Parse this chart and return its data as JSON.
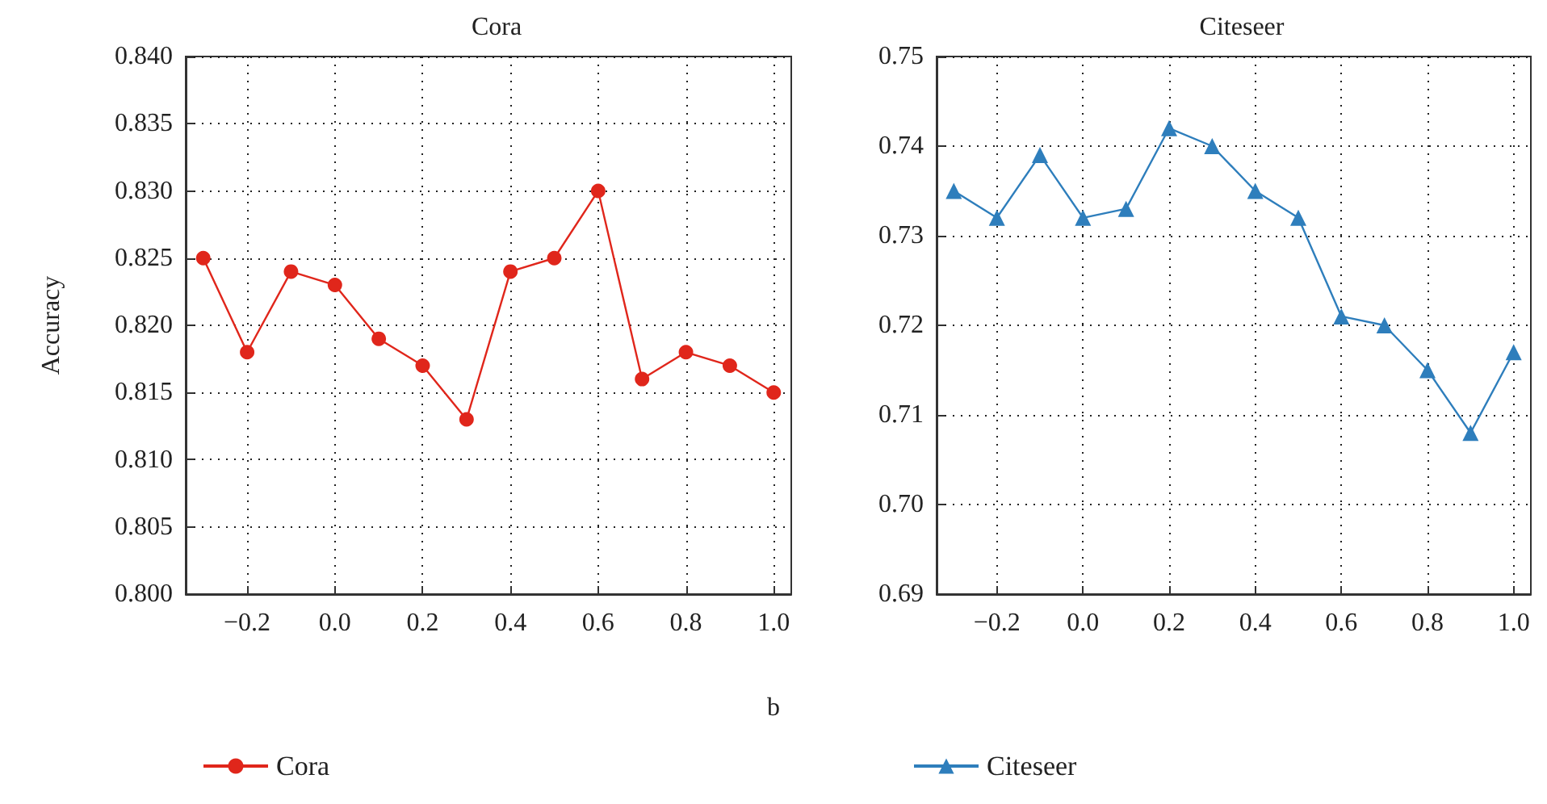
{
  "chart_data": [
    {
      "type": "line",
      "title": "Cora",
      "ylabel": "Accuracy",
      "x": [
        -0.3,
        -0.2,
        -0.1,
        0.0,
        0.1,
        0.2,
        0.3,
        0.4,
        0.5,
        0.6,
        0.7,
        0.8,
        0.9,
        1.0
      ],
      "series": [
        {
          "name": "Cora",
          "color": "#e0261b",
          "values": [
            0.825,
            0.818,
            0.824,
            0.823,
            0.819,
            0.817,
            0.813,
            0.824,
            0.825,
            0.83,
            0.816,
            0.818,
            0.817,
            0.815
          ]
        }
      ],
      "xlim": [
        -0.34,
        1.04
      ],
      "xticks": [
        {
          "value": -0.2,
          "label": "−0.2"
        },
        {
          "value": 0.0,
          "label": "0.0"
        },
        {
          "value": 0.2,
          "label": "0.2"
        },
        {
          "value": 0.4,
          "label": "0.4"
        },
        {
          "value": 0.6,
          "label": "0.6"
        },
        {
          "value": 0.8,
          "label": "0.8"
        },
        {
          "value": 1.0,
          "label": "1.0"
        }
      ],
      "ylim": [
        0.8,
        0.84
      ],
      "yticks": [
        {
          "value": 0.8,
          "label": "0.800"
        },
        {
          "value": 0.805,
          "label": "0.805"
        },
        {
          "value": 0.81,
          "label": "0.810"
        },
        {
          "value": 0.815,
          "label": "0.815"
        },
        {
          "value": 0.82,
          "label": "0.820"
        },
        {
          "value": 0.825,
          "label": "0.825"
        },
        {
          "value": 0.83,
          "label": "0.830"
        },
        {
          "value": 0.835,
          "label": "0.835"
        },
        {
          "value": 0.84,
          "label": "0.840"
        }
      ],
      "grid": true,
      "legend": "bottom",
      "marker": "circle",
      "line_style": "solid",
      "annotations": [
        "b"
      ]
    },
    {
      "type": "line",
      "title": "Citeseer",
      "x": [
        -0.3,
        -0.2,
        -0.1,
        0.0,
        0.1,
        0.2,
        0.3,
        0.4,
        0.5,
        0.6,
        0.7,
        0.8,
        0.9,
        1.0
      ],
      "series": [
        {
          "name": "Citeseer",
          "color": "#2e7ebc",
          "values": [
            0.735,
            0.732,
            0.739,
            0.732,
            0.733,
            0.742,
            0.74,
            0.735,
            0.732,
            0.721,
            0.72,
            0.715,
            0.708,
            0.717
          ]
        }
      ],
      "xlim": [
        -0.34,
        1.04
      ],
      "xticks": [
        {
          "value": -0.2,
          "label": "−0.2"
        },
        {
          "value": 0.0,
          "label": "0.0"
        },
        {
          "value": 0.2,
          "label": "0.2"
        },
        {
          "value": 0.4,
          "label": "0.4"
        },
        {
          "value": 0.6,
          "label": "0.6"
        },
        {
          "value": 0.8,
          "label": "0.8"
        },
        {
          "value": 1.0,
          "label": "1.0"
        }
      ],
      "ylim": [
        0.69,
        0.75
      ],
      "yticks": [
        {
          "value": 0.69,
          "label": "0.69"
        },
        {
          "value": 0.7,
          "label": "0.70"
        },
        {
          "value": 0.71,
          "label": "0.71"
        },
        {
          "value": 0.72,
          "label": "0.72"
        },
        {
          "value": 0.73,
          "label": "0.73"
        },
        {
          "value": 0.74,
          "label": "0.74"
        },
        {
          "value": 0.75,
          "label": "0.75"
        }
      ],
      "grid": true,
      "legend": "bottom",
      "marker": "triangle",
      "line_style": "solid"
    }
  ]
}
